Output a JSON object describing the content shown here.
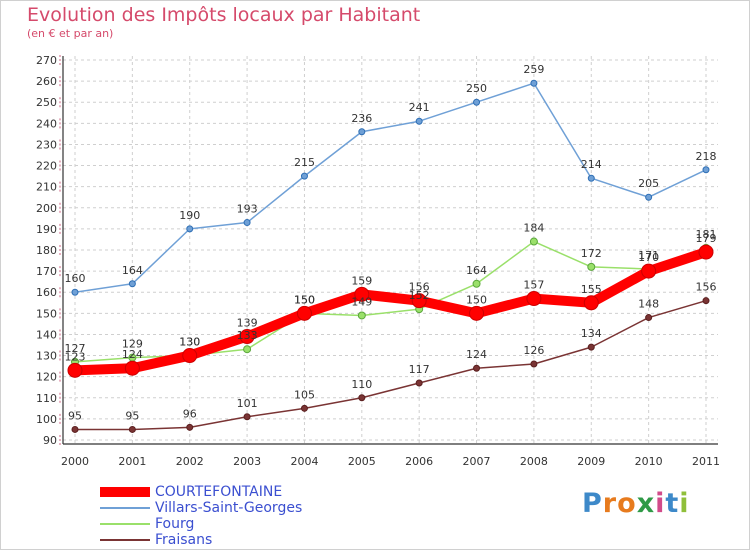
{
  "title": "Evolution des Impôts locaux par Habitant",
  "subtitle": "(en € et par an)",
  "logo": {
    "letters": [
      "P",
      "r",
      "o",
      "x",
      "i",
      "t",
      "i"
    ],
    "colors": [
      "#3d89c9",
      "#e77b1e",
      "#e77b1e",
      "#2f9a47",
      "#d24b8a",
      "#3d89c9",
      "#8fbf3a"
    ]
  },
  "chart_data": {
    "type": "line",
    "x": [
      "2000",
      "2001",
      "2002",
      "2003",
      "2004",
      "2005",
      "2006",
      "2007",
      "2008",
      "2009",
      "2010",
      "2011"
    ],
    "ylim": [
      90,
      270
    ],
    "yticks": [
      90,
      100,
      110,
      120,
      130,
      140,
      150,
      160,
      170,
      180,
      190,
      200,
      210,
      220,
      230,
      240,
      250,
      260,
      270
    ],
    "grid": true,
    "legend_position": "bottom-left",
    "series": [
      {
        "name": "COURTEFONTAINE",
        "color": "#ff0000",
        "values": [
          123,
          124,
          130,
          139,
          150,
          159,
          156,
          150,
          157,
          155,
          170,
          179
        ]
      },
      {
        "name": "Villars-Saint-Georges",
        "color": "#6fa0d6",
        "values": [
          160,
          164,
          190,
          193,
          215,
          236,
          241,
          250,
          259,
          214,
          205,
          218
        ]
      },
      {
        "name": "Fourg",
        "color": "#9ae06a",
        "values": [
          127,
          129,
          130,
          133,
          150,
          149,
          152,
          164,
          184,
          172,
          171,
          181
        ]
      },
      {
        "name": "Fraisans",
        "color": "#7a3434",
        "values": [
          95,
          95,
          96,
          101,
          105,
          110,
          117,
          124,
          126,
          134,
          148,
          156
        ]
      }
    ]
  }
}
